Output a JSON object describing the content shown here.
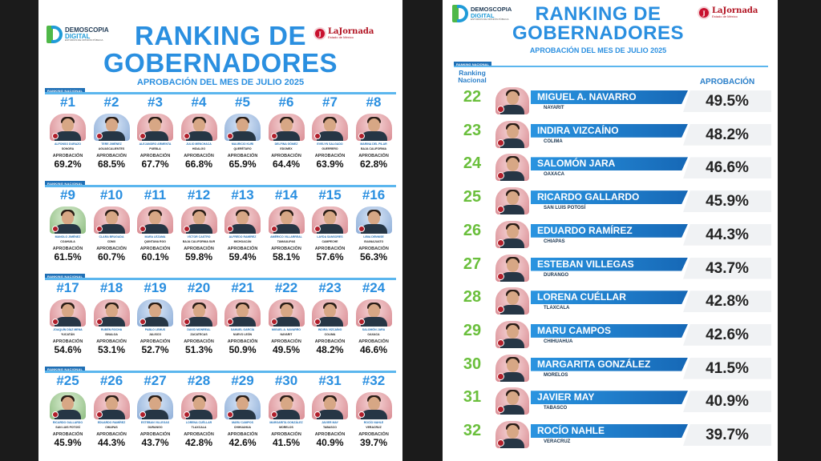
{
  "header": {
    "title_line1": "RANKING DE",
    "title_line2": "GOBERNADORES",
    "subtitle": "APROBACIÓN DEL MES DE JULIO 2025",
    "brand_line1": "DEMOSCOPIA",
    "brand_line2": "DIGITAL",
    "brand_tagline": "ESTUDIOS DE OPINIÓN PÚBLICA",
    "partner_name": "LaJornada",
    "partner_sub": "Estado de México",
    "partner_seal": "J",
    "section_tag": "RANKING NACIONAL",
    "approval_label": "APROBACIÓN",
    "ranking_col_line1": "Ranking",
    "ranking_col_line2": "Nacional"
  },
  "grid": [
    {
      "rank": "#1",
      "name": "ALFONSO DURAZO",
      "state": "SONORA",
      "pct": "69.2%",
      "party": "red"
    },
    {
      "rank": "#2",
      "name": "TERE JIMÉNEZ",
      "state": "AGUASCALIENTES",
      "pct": "68.5%",
      "party": "blue"
    },
    {
      "rank": "#3",
      "name": "ALEJANDRO ARMENTA",
      "state": "PUEBLA",
      "pct": "67.7%",
      "party": "red"
    },
    {
      "rank": "#4",
      "name": "JULIO MENCHACA",
      "state": "HIDALGO",
      "pct": "66.8%",
      "party": "red"
    },
    {
      "rank": "#5",
      "name": "MAURICIO KURI",
      "state": "QUERÉTARO",
      "pct": "65.9%",
      "party": "blue"
    },
    {
      "rank": "#6",
      "name": "DELFINA GÓMEZ",
      "state": "EDOMEX",
      "pct": "64.4%",
      "party": "red"
    },
    {
      "rank": "#7",
      "name": "EVELYN SALGADO",
      "state": "GUERRERO",
      "pct": "63.9%",
      "party": "red"
    },
    {
      "rank": "#8",
      "name": "MARINA DEL PILAR",
      "state": "BAJA CALIFORNIA",
      "pct": "62.8%",
      "party": "red"
    },
    {
      "rank": "#9",
      "name": "MANOLO JIMÉNEZ",
      "state": "COAHUILA",
      "pct": "61.5%",
      "party": "green"
    },
    {
      "rank": "#10",
      "name": "CLARA BRUGADA",
      "state": "CDMX",
      "pct": "60.7%",
      "party": "red"
    },
    {
      "rank": "#11",
      "name": "MARA LEZAMA",
      "state": "QUINTANA ROO",
      "pct": "60.1%",
      "party": "red"
    },
    {
      "rank": "#12",
      "name": "VÍCTOR CASTRO",
      "state": "BAJA CALIFORNIA SUR",
      "pct": "59.8%",
      "party": "red"
    },
    {
      "rank": "#13",
      "name": "ALFREDO RAMÍREZ",
      "state": "MICHOACÁN",
      "pct": "59.4%",
      "party": "red"
    },
    {
      "rank": "#14",
      "name": "AMÉRICO VILLARREAL",
      "state": "TAMAULIPAS",
      "pct": "58.1%",
      "party": "red"
    },
    {
      "rank": "#15",
      "name": "LAYDA SANSORES",
      "state": "CAMPECHE",
      "pct": "57.6%",
      "party": "red"
    },
    {
      "rank": "#16",
      "name": "LIBIA DENNISE",
      "state": "GUANAJUATO",
      "pct": "56.3%",
      "party": "blue"
    },
    {
      "rank": "#17",
      "name": "JOAQUÍN DÍAZ MENA",
      "state": "YUCATÁN",
      "pct": "54.6%",
      "party": "red"
    },
    {
      "rank": "#18",
      "name": "RUBÉN ROCHA",
      "state": "SINALOA",
      "pct": "53.1%",
      "party": "red"
    },
    {
      "rank": "#19",
      "name": "PABLO LEMUS",
      "state": "JALISCO",
      "pct": "52.7%",
      "party": "blue"
    },
    {
      "rank": "#20",
      "name": "DAVID MONREAL",
      "state": "ZACATECAS",
      "pct": "51.3%",
      "party": "red"
    },
    {
      "rank": "#21",
      "name": "SAMUEL GARCÍA",
      "state": "NUEVO LEÓN",
      "pct": "50.9%",
      "party": "red"
    },
    {
      "rank": "#22",
      "name": "MIGUEL A. NAVARRO",
      "state": "NAYARIT",
      "pct": "49.5%",
      "party": "red"
    },
    {
      "rank": "#23",
      "name": "INDIRA VIZCAÍNO",
      "state": "COLIMA",
      "pct": "48.2%",
      "party": "red"
    },
    {
      "rank": "#24",
      "name": "SALOMÓN JARA",
      "state": "OAXACA",
      "pct": "46.6%",
      "party": "red"
    },
    {
      "rank": "#25",
      "name": "RICARDO GALLARDO",
      "state": "SAN LUIS POTOSÍ",
      "pct": "45.9%",
      "party": "green"
    },
    {
      "rank": "#26",
      "name": "EDUARDO RAMÍREZ",
      "state": "CHIAPAS",
      "pct": "44.3%",
      "party": "red"
    },
    {
      "rank": "#27",
      "name": "ESTEBAN VILLEGAS",
      "state": "DURANGO",
      "pct": "43.7%",
      "party": "blue"
    },
    {
      "rank": "#28",
      "name": "LORENA CUÉLLAR",
      "state": "TLAXCALA",
      "pct": "42.8%",
      "party": "red"
    },
    {
      "rank": "#29",
      "name": "MARU CAMPOS",
      "state": "CHIHUAHUA",
      "pct": "42.6%",
      "party": "blue"
    },
    {
      "rank": "#30",
      "name": "MARGARITA GONZÁLEZ",
      "state": "MORELOS",
      "pct": "41.5%",
      "party": "red"
    },
    {
      "rank": "#31",
      "name": "JAVIER MAY",
      "state": "TABASCO",
      "pct": "40.9%",
      "party": "red"
    },
    {
      "rank": "#32",
      "name": "ROCÍO NAHLE",
      "state": "VERACRUZ",
      "pct": "39.7%",
      "party": "red"
    }
  ],
  "list": [
    {
      "rank": "22",
      "name": "MIGUEL A. NAVARRO",
      "state": "NAYARIT",
      "pct": "49.5%"
    },
    {
      "rank": "23",
      "name": "INDIRA VIZCAÍNO",
      "state": "COLIMA",
      "pct": "48.2%"
    },
    {
      "rank": "24",
      "name": "SALOMÓN JARA",
      "state": "OAXACA",
      "pct": "46.6%"
    },
    {
      "rank": "25",
      "name": "RICARDO GALLARDO",
      "state": "SAN LUIS POTOSÍ",
      "pct": "45.9%"
    },
    {
      "rank": "26",
      "name": "EDUARDO RAMÍREZ",
      "state": "CHIAPAS",
      "pct": "44.3%"
    },
    {
      "rank": "27",
      "name": "ESTEBAN VILLEGAS",
      "state": "DURANGO",
      "pct": "43.7%"
    },
    {
      "rank": "28",
      "name": "LORENA CUÉLLAR",
      "state": "TLAXCALA",
      "pct": "42.8%"
    },
    {
      "rank": "29",
      "name": "MARU CAMPOS",
      "state": "CHIHUAHUA",
      "pct": "42.6%"
    },
    {
      "rank": "30",
      "name": "MARGARITA GONZÁLEZ",
      "state": "MORELOS",
      "pct": "41.5%"
    },
    {
      "rank": "31",
      "name": "JAVIER MAY",
      "state": "TABASCO",
      "pct": "40.9%"
    },
    {
      "rank": "32",
      "name": "ROCÍO NAHLE",
      "state": "VERACRUZ",
      "pct": "39.7%"
    }
  ],
  "colors": {
    "title_blue": "#2a8fe0",
    "rank_green": "#6abf3c",
    "bar_blue": "#1f78c8",
    "background": "#1b1b1b"
  }
}
